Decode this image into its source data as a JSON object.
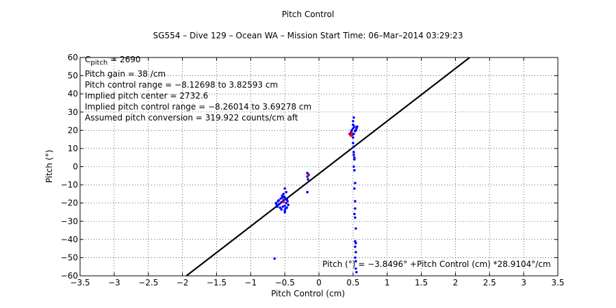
{
  "chart_data": {
    "type": "scatter",
    "title": "Pitch Control",
    "subtitle": "SG554 – Dive 129 – Ocean WA – Mission Start Time: 06–Mar–2014 03:29:23",
    "xlabel": "Pitch Control (cm)",
    "ylabel": "Pitch (°)",
    "xlim": [
      -3.5,
      3.5
    ],
    "ylim": [
      -60,
      60
    ],
    "grid": true,
    "xticks": [
      -3.5,
      -3,
      -2.5,
      -2,
      -1.5,
      -1,
      -0.5,
      0,
      0.5,
      1,
      1.5,
      2,
      2.5,
      3,
      3.5
    ],
    "xtick_labels": [
      "−3.5",
      "−3",
      "−2.5",
      "−2",
      "−1.5",
      "−1",
      "−0.5",
      "0",
      "0.5",
      "1",
      "1.5",
      "2",
      "2.5",
      "3",
      "3.5"
    ],
    "yticks": [
      -60,
      -50,
      -40,
      -30,
      -20,
      -10,
      0,
      10,
      20,
      30,
      40,
      50,
      60
    ],
    "ytick_labels": [
      "−60",
      "−50",
      "−40",
      "−30",
      "−20",
      "−10",
      "0",
      "10",
      "20",
      "30",
      "40",
      "50",
      "60"
    ],
    "annotations": {
      "c_pitch_prefix": "C",
      "c_pitch_sub": "pitch",
      "c_pitch_value": " = 2690",
      "lines": [
        "Pitch gain = 38 /cm",
        "Pitch control range = −8.12698 to 3.82593 cm",
        "Implied pitch center = 2732.6",
        "Implied pitch control range = −8.26014 to 3.69278 cm",
        "Assumed pitch conversion = 319.922 counts/cm aft"
      ],
      "fit_label": "Pitch (°) = −3.8496° +Pitch Control (cm) *28.9104°/cm"
    },
    "fit": {
      "intercept": -3.8496,
      "slope": 28.9104,
      "color": "#000000"
    },
    "series": [
      {
        "color": "#0000ff",
        "points": [
          [
            -0.5,
            -17
          ],
          [
            -0.52,
            -18.5
          ],
          [
            -0.55,
            -19.5
          ],
          [
            -0.48,
            -20
          ],
          [
            -0.5,
            -21.5
          ],
          [
            -0.53,
            -22
          ],
          [
            -0.47,
            -18
          ],
          [
            -0.6,
            -19
          ],
          [
            -0.58,
            -20.5
          ],
          [
            -0.62,
            -21
          ],
          [
            -0.56,
            -17.5
          ],
          [
            -0.51,
            -16.5
          ],
          [
            -0.49,
            -23
          ],
          [
            -0.5,
            -24
          ],
          [
            -0.46,
            -19
          ],
          [
            -0.45,
            -21
          ],
          [
            -0.54,
            -16
          ],
          [
            -0.57,
            -22.5
          ],
          [
            -0.63,
            -20
          ],
          [
            -0.59,
            -18.5
          ],
          [
            -0.52,
            -15
          ],
          [
            -0.5,
            -12
          ],
          [
            -0.48,
            -14
          ],
          [
            -0.5,
            -25
          ],
          [
            -0.61,
            -22
          ],
          [
            -0.55,
            -23.5
          ],
          [
            -0.53,
            -17
          ],
          [
            -0.47,
            -22.5
          ],
          [
            -0.65,
            -50.5
          ],
          [
            -0.17,
            -3.5
          ],
          [
            -0.17,
            -5.5
          ],
          [
            -0.16,
            -7
          ],
          [
            -0.15,
            -4.5
          ],
          [
            -0.17,
            -14
          ],
          [
            0.45,
            18
          ],
          [
            0.47,
            19
          ],
          [
            0.48,
            20
          ],
          [
            0.5,
            21
          ],
          [
            0.52,
            22
          ],
          [
            0.5,
            23
          ],
          [
            0.51,
            18
          ],
          [
            0.53,
            19.5
          ],
          [
            0.55,
            21
          ],
          [
            0.56,
            22
          ],
          [
            0.54,
            20
          ],
          [
            0.49,
            17.5
          ],
          [
            0.5,
            25
          ],
          [
            0.51,
            27
          ],
          [
            0.5,
            16
          ],
          [
            0.5,
            13
          ],
          [
            0.51,
            11
          ],
          [
            0.51,
            8
          ],
          [
            0.52,
            5
          ],
          [
            0.51,
            6.5
          ],
          [
            0.52,
            4
          ],
          [
            0.51,
            0
          ],
          [
            0.52,
            -2
          ],
          [
            0.53,
            -9
          ],
          [
            0.52,
            -12
          ],
          [
            0.53,
            -19
          ],
          [
            0.53,
            -28
          ],
          [
            0.54,
            -34
          ],
          [
            0.53,
            -41
          ],
          [
            0.54,
            -42
          ],
          [
            0.53,
            -44
          ],
          [
            0.54,
            -47
          ],
          [
            0.53,
            -50
          ],
          [
            0.54,
            -52
          ],
          [
            0.55,
            -58
          ],
          [
            0.54,
            -56
          ],
          [
            0.52,
            -26
          ],
          [
            0.53,
            -23
          ]
        ]
      },
      {
        "color": "#ff0000",
        "points": [
          [
            0.46,
            17.5
          ],
          [
            0.48,
            18.5
          ],
          [
            -0.52,
            -19.5
          ],
          [
            -0.16,
            -5
          ],
          [
            0.47,
            17
          ]
        ]
      }
    ]
  }
}
